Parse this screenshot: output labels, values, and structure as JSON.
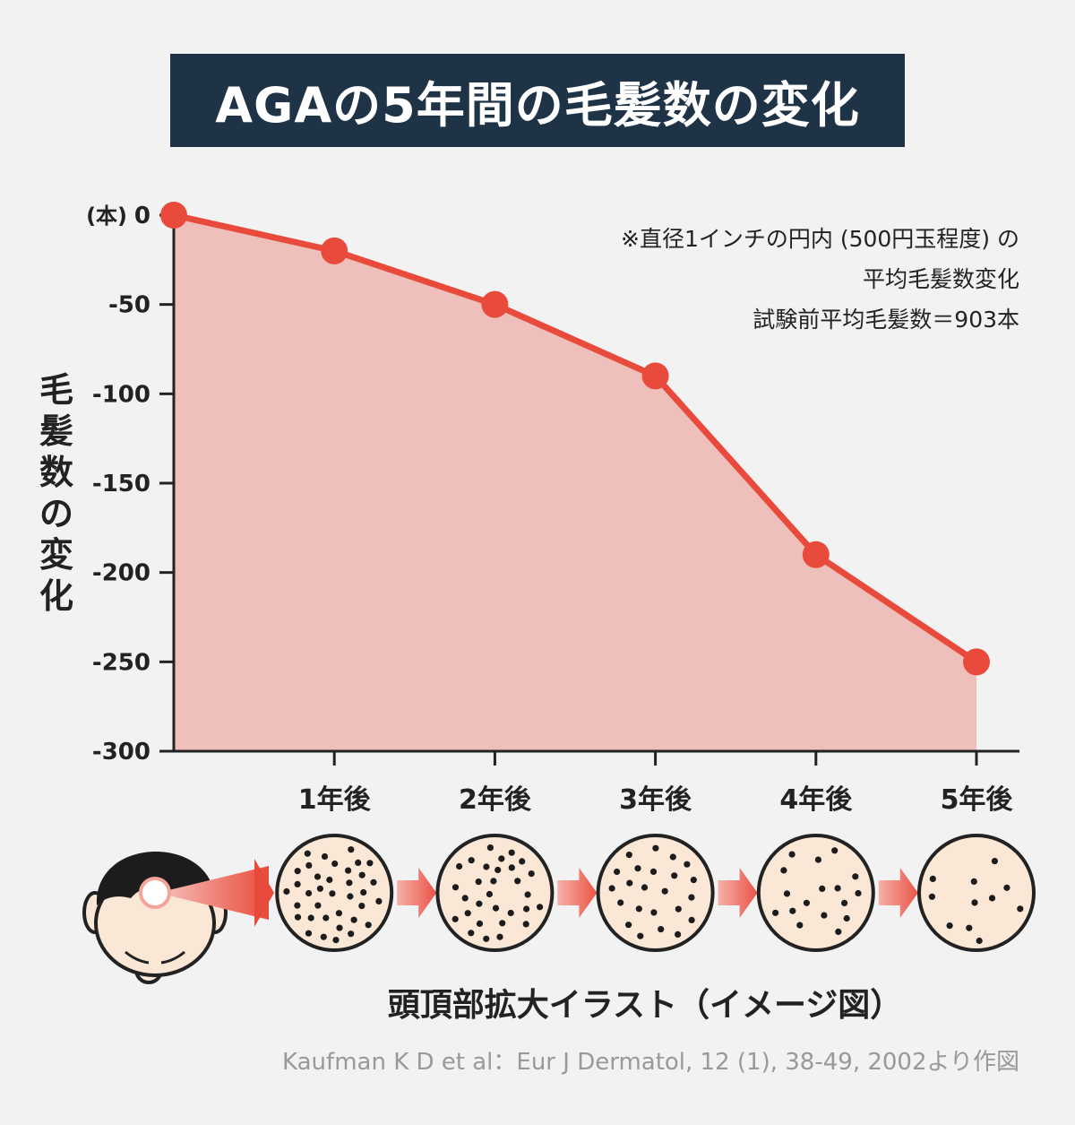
{
  "title": "AGAの5年間の毛髪数の変化",
  "chart_data": {
    "type": "area",
    "ylabel": "毛髪数の変化",
    "y_unit": "(本)",
    "ylim": [
      -300,
      0
    ],
    "y_ticks": [
      0,
      -50,
      -100,
      -150,
      -200,
      -250,
      -300
    ],
    "x_labels": [
      "",
      "1年後",
      "2年後",
      "3年後",
      "4年後",
      "5年後"
    ],
    "series": [
      {
        "values": [
          0,
          -20,
          -50,
          -90,
          -190,
          -250
        ]
      }
    ],
    "colors": {
      "line": "#e84b3c",
      "fill": "#efc0bb"
    }
  },
  "note": [
    "※直径1インチの円内 (500円玉程度) の",
    "平均毛髪数変化",
    "試験前平均毛髪数＝903本"
  ],
  "illustration": {
    "caption": "頭頂部拡大イラスト（イメージ図）",
    "stages": [
      {
        "label": "1年後",
        "density": 36
      },
      {
        "label": "2年後",
        "density": 30
      },
      {
        "label": "3年後",
        "density": 24
      },
      {
        "label": "4年後",
        "density": 17
      },
      {
        "label": "5年後",
        "density": 11
      }
    ]
  },
  "source": "Kaufman K D et al：Eur J Dermatol, 12 (1), 38-49, 2002より作図"
}
